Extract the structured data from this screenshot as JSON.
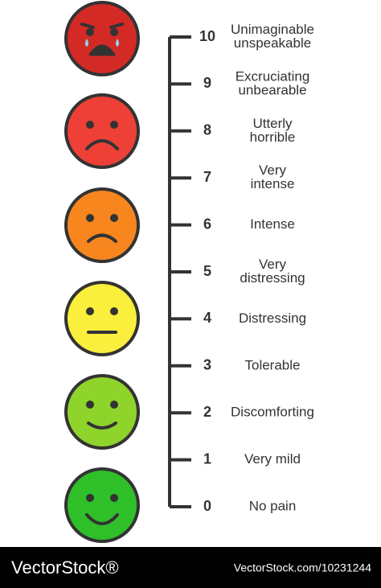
{
  "scale": {
    "levels": [
      {
        "number": 10,
        "label": [
          "Unimaginable",
          "unspeakable"
        ]
      },
      {
        "number": 9,
        "label": [
          "Excruciating",
          "unbearable"
        ]
      },
      {
        "number": 8,
        "label": [
          "Utterly",
          "horrible"
        ]
      },
      {
        "number": 7,
        "label": [
          "Very",
          "intense"
        ]
      },
      {
        "number": 6,
        "label": [
          "Intense"
        ]
      },
      {
        "number": 5,
        "label": [
          "Very",
          "distressing"
        ]
      },
      {
        "number": 4,
        "label": [
          "Distressing"
        ]
      },
      {
        "number": 3,
        "label": [
          "Tolerable"
        ]
      },
      {
        "number": 2,
        "label": [
          "Discomforting"
        ]
      },
      {
        "number": 1,
        "label": [
          "Very mild"
        ]
      },
      {
        "number": 0,
        "label": [
          "No pain"
        ]
      }
    ]
  },
  "footer": {
    "brand": "VectorStock®",
    "id": "VectorStock.com/10231244"
  }
}
